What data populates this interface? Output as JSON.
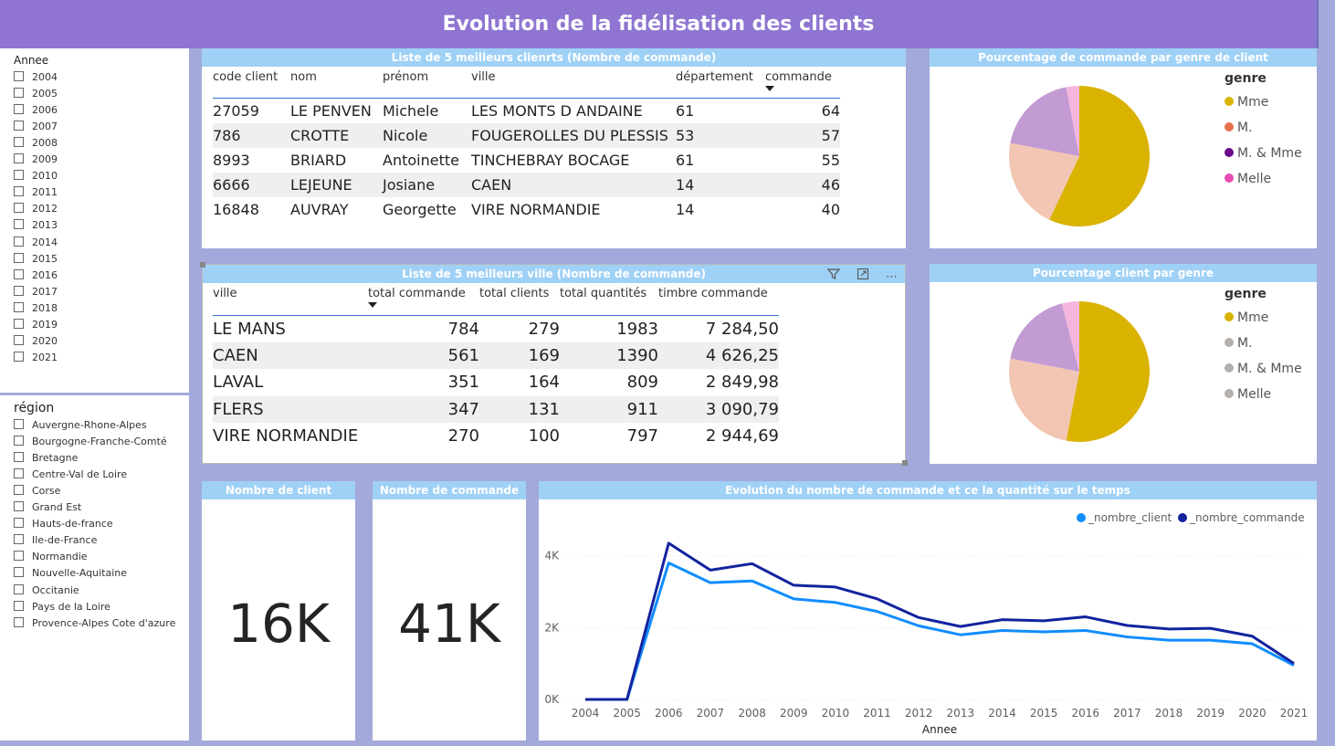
{
  "title": "Evolution de la fidélisation des clients",
  "slicer_year": {
    "title": "Annee",
    "items": [
      "2004",
      "2005",
      "2006",
      "2007",
      "2008",
      "2009",
      "2010",
      "2011",
      "2012",
      "2013",
      "2014",
      "2015",
      "2016",
      "2017",
      "2018",
      "2019",
      "2020",
      "2021"
    ]
  },
  "slicer_region": {
    "title": "région",
    "items": [
      "Auvergne-Rhone-Alpes",
      "Bourgogne-Franche-Comté",
      "Bretagne",
      "Centre-Val de Loire",
      "Corse",
      "Grand Est",
      "Hauts-de-france",
      "Ile-de-France",
      "Normandie",
      "Nouvelle-Aquitaine",
      "Occitanie",
      "Pays de la Loire",
      "Provence-Alpes Cote d'azure"
    ]
  },
  "top_clients": {
    "title": "Liste de 5 meilleurs clienrts (Nombre de commande)",
    "headers": [
      "code client",
      "nom",
      "prénom",
      "ville",
      "département",
      "commande"
    ],
    "rows": [
      [
        "27059",
        "LE PENVEN",
        "Michele",
        "LES MONTS D ANDAINE",
        "61",
        "64"
      ],
      [
        "786",
        "CROTTE",
        "Nicole",
        "FOUGEROLLES DU PLESSIS",
        "53",
        "57"
      ],
      [
        "8993",
        "BRIARD",
        "Antoinette",
        "TINCHEBRAY BOCAGE",
        "61",
        "55"
      ],
      [
        "6666",
        "LEJEUNE",
        "Josiane",
        "CAEN",
        "14",
        "46"
      ],
      [
        "16848",
        "AUVRAY",
        "Georgette",
        "VIRE NORMANDIE",
        "14",
        "40"
      ]
    ]
  },
  "top_villes": {
    "title": "Liste de 5 meilleurs ville (Nombre de commande)",
    "headers": [
      "ville",
      "total commande",
      "total clients",
      "total quantités",
      "timbre commande"
    ],
    "rows": [
      [
        "LE MANS",
        "784",
        "279",
        "1983",
        "7 284,50"
      ],
      [
        "CAEN",
        "561",
        "169",
        "1390",
        "4 626,25"
      ],
      [
        "LAVAL",
        "351",
        "164",
        "809",
        "2 849,98"
      ],
      [
        "FLERS",
        "347",
        "131",
        "911",
        "3 090,79"
      ],
      [
        "VIRE NORMANDIE",
        "270",
        "100",
        "797",
        "2 944,69"
      ]
    ],
    "icons": [
      "filter-icon",
      "focus-mode-icon",
      "more-options-icon"
    ]
  },
  "pie_commande": {
    "title": "Pourcentage de commande par genre de client",
    "legend_title": "genre",
    "legend": [
      {
        "label": "Mme",
        "color": "#d9b300"
      },
      {
        "label": "M.",
        "color": "#e8704a"
      },
      {
        "label": "M. & Mme",
        "color": "#6b0b8c"
      },
      {
        "label": "Melle",
        "color": "#e84cb5"
      }
    ]
  },
  "pie_client": {
    "title": "Pourcentage client par genre",
    "legend_title": "genre",
    "legend": [
      {
        "label": "Mme",
        "color": "#d9b300"
      },
      {
        "label": "M.",
        "color": "#b3b0ad"
      },
      {
        "label": "M. & Mme",
        "color": "#b3b0ad"
      },
      {
        "label": "Melle",
        "color": "#b3b0ad"
      }
    ]
  },
  "card_clients": {
    "title": "Nombre de client",
    "value": "16K"
  },
  "card_commandes": {
    "title": "Nombre de commande",
    "value": "41K"
  },
  "chart_data": [
    {
      "type": "pie",
      "title": "Pourcentage de commande par genre de client",
      "categories": [
        "Mme",
        "M.",
        "M. & Mme",
        "Melle"
      ],
      "values": [
        57,
        21,
        19,
        3
      ],
      "colors": [
        "#d9b300",
        "#f2c6b2",
        "#c39bd3",
        "#f4b6dc"
      ]
    },
    {
      "type": "pie",
      "title": "Pourcentage client par genre",
      "categories": [
        "Mme",
        "M.",
        "M. & Mme",
        "Melle"
      ],
      "values": [
        53,
        25,
        18,
        4
      ],
      "colors": [
        "#d9b300",
        "#f2c6b2",
        "#c39bd3",
        "#f4b6dc"
      ]
    },
    {
      "type": "line",
      "title": "Evolution du nombre de commande et ce la quantité sur le temps",
      "xlabel": "Annee",
      "ylabel": "",
      "x": [
        "2004",
        "2005",
        "2006",
        "2007",
        "2008",
        "2009",
        "2010",
        "2011",
        "2012",
        "2013",
        "2014",
        "2015",
        "2016",
        "2017",
        "2018",
        "2019",
        "2020",
        "2021"
      ],
      "ylim": [
        0,
        4500
      ],
      "yticks": [
        "0K",
        "2K",
        "4K"
      ],
      "yticks_values": [
        0,
        2000,
        4000
      ],
      "series": [
        {
          "name": "_nombre_client",
          "color": "#118dff",
          "values": [
            0,
            0,
            3800,
            3250,
            3300,
            2800,
            2700,
            2450,
            2050,
            1800,
            1920,
            1880,
            1920,
            1740,
            1650,
            1650,
            1550,
            950
          ]
        },
        {
          "name": "_nombre_commande",
          "color": "#12239e",
          "values": [
            0,
            0,
            4350,
            3600,
            3780,
            3180,
            3130,
            2800,
            2280,
            2030,
            2220,
            2190,
            2300,
            2060,
            1960,
            1980,
            1760,
            1000
          ]
        }
      ]
    }
  ]
}
